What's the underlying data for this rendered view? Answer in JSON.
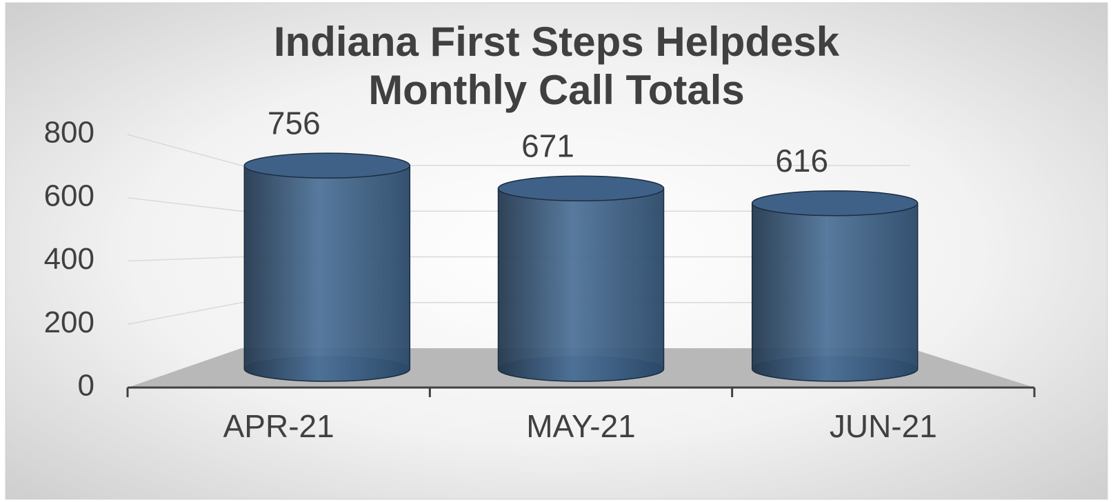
{
  "chart_data": {
    "type": "bar",
    "title": "Indiana First Steps Helpdesk Monthly Call Totals",
    "categories": [
      "APR-21",
      "MAY-21",
      "JUN-21"
    ],
    "values": [
      756,
      671,
      616
    ],
    "color": "#3a5f87",
    "ylim": [
      0,
      800
    ],
    "yticks": [
      0,
      200,
      400,
      600,
      800
    ],
    "grid": true
  }
}
